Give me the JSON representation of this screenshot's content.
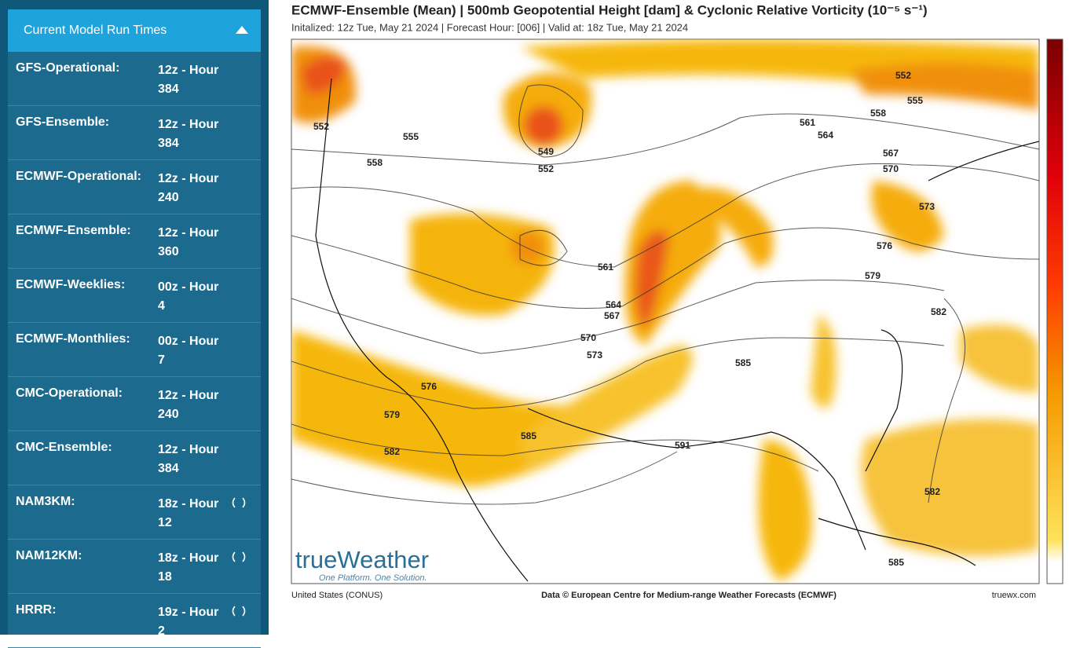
{
  "sidebar": {
    "title": "Current Model Run Times",
    "rows": [
      {
        "model": "GFS-Operational:",
        "time": "12z - Hour 384"
      },
      {
        "model": "GFS-Ensemble:",
        "time": "12z - Hour 384"
      },
      {
        "model": "ECMWF-Operational:",
        "time": "12z - Hour 240"
      },
      {
        "model": "ECMWF-Ensemble:",
        "time": "12z - Hour 360"
      },
      {
        "model": "ECMWF-Weeklies:",
        "time": "00z - Hour 4"
      },
      {
        "model": "ECMWF-Monthlies:",
        "time": "00z - Hour 7"
      },
      {
        "model": "CMC-Operational:",
        "time": "12z - Hour 240"
      },
      {
        "model": "CMC-Ensemble:",
        "time": "12z - Hour 384"
      },
      {
        "model": "NAM3KM:",
        "time": "18z - Hour 12"
      },
      {
        "model": "NAM12KM:",
        "time": "18z - Hour 18"
      },
      {
        "model": "HRRR:",
        "time": "19z - Hour 2"
      }
    ]
  },
  "map": {
    "title": "ECMWF-Ensemble (Mean)  |  500mb Geopotential Height [dam] & Cyclonic Relative Vorticity (10⁻⁵ s⁻¹)",
    "subtitle": "Initalized: 12z Tue, May 21 2024  |  Forecast Hour: [006]  |  Valid at: 18z Tue, May 21 2024",
    "contour_labels": [
      "552",
      "555",
      "558",
      "549",
      "552",
      "561",
      "564",
      "567",
      "570",
      "552",
      "555",
      "558",
      "573",
      "576",
      "579",
      "582",
      "561",
      "564",
      "567",
      "570",
      "573",
      "585",
      "576",
      "579",
      "582",
      "585",
      "591",
      "582",
      "585"
    ],
    "logo": "trueWeather",
    "logo_tagline": "One Platform. One Solution.",
    "footer_left": "United States (CONUS)",
    "footer_center": "Data © European Centre for Medium-range Weather Forecasts (ECMWF)",
    "footer_right": "truewx.com"
  }
}
